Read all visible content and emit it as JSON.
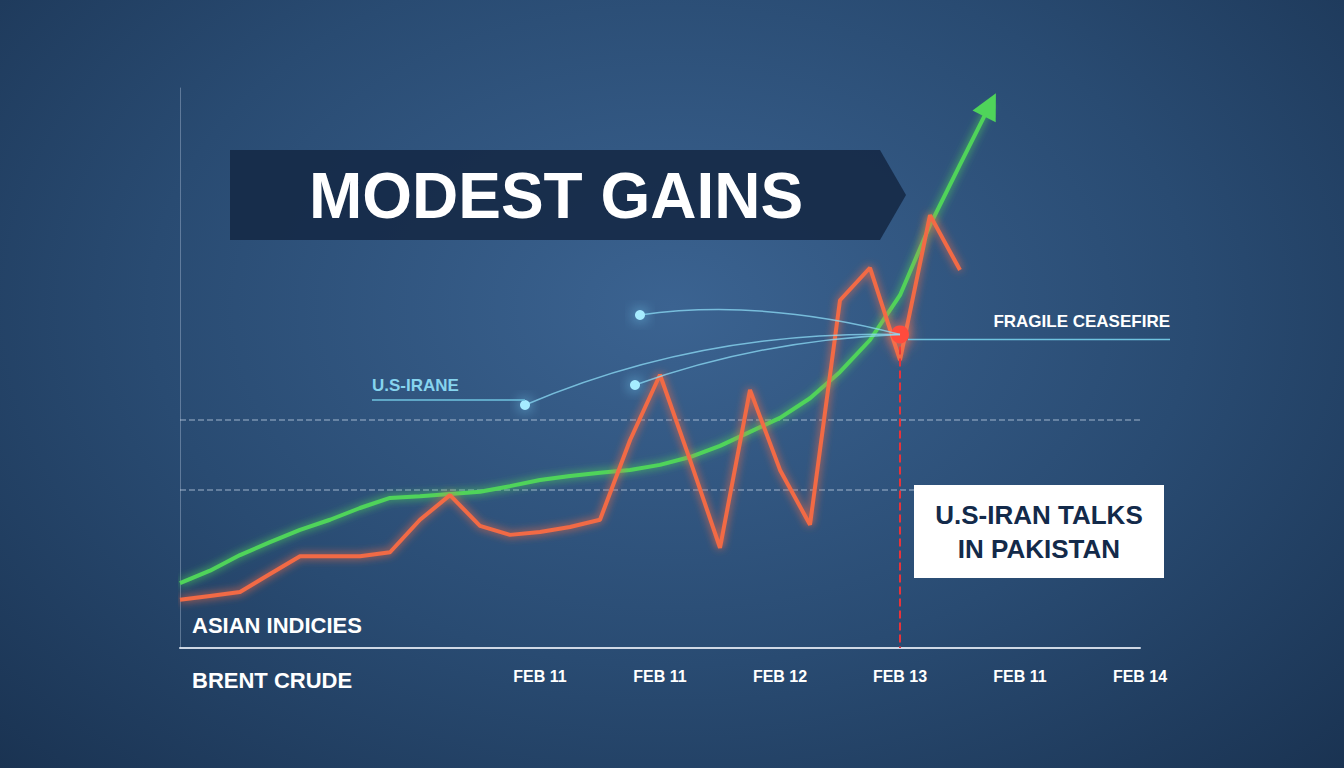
{
  "chart_data": {
    "type": "line",
    "title": "MODEST GAINS",
    "categories": [
      null,
      null,
      null,
      null,
      null,
      null,
      null,
      null,
      null,
      null,
      null,
      null,
      "FEB 11",
      null,
      null,
      null,
      "FEB 11",
      null,
      null,
      null,
      "FEB 12",
      null,
      null,
      null,
      "FEB 13",
      null,
      null,
      null,
      "FEB 11",
      null,
      null,
      null,
      "FEB 14"
    ],
    "series": [
      {
        "name": "ASIAN INDICIES",
        "color": "#4fd45a",
        "marker": "arrow",
        "values": [
          11.6,
          13.8,
          16.6,
          18.9,
          21.1,
          22.9,
          25.0,
          26.8,
          27.1,
          27.5,
          27.9,
          28.9,
          30.0,
          30.7,
          31.3,
          31.8,
          32.7,
          34.1,
          36.1,
          38.6,
          41.1,
          44.6,
          49.3,
          55.0,
          63.0,
          75.5,
          86.3,
          97.0,
          null,
          null,
          null,
          null,
          null
        ]
      },
      {
        "name": "BRENT CRUDE",
        "color": "#f26a45",
        "values": [
          8.6,
          9.3,
          10.0,
          13.2,
          16.4,
          16.4,
          16.4,
          17.1,
          22.9,
          27.3,
          21.8,
          20.2,
          20.7,
          21.6,
          22.9,
          37.1,
          48.8,
          33.6,
          17.9,
          46.1,
          31.8,
          22.0,
          62.1,
          67.9,
          51.4,
          77.3,
          67.5,
          null,
          null,
          null,
          null,
          null,
          null
        ]
      }
    ],
    "ylim": [
      0,
      100
    ],
    "yticks": [
      28.2,
      40.7
    ],
    "grid": true,
    "tick_labels": "x",
    "legend": "lower left",
    "annotations": [
      {
        "text": "U.S-IRAN TALKS IN PAKISTAN",
        "x": "FEB 13",
        "y": 56
      },
      {
        "text": "FRAGILE CEASEFIRE"
      },
      {
        "text": "U.S-IRANE"
      }
    ]
  }
}
